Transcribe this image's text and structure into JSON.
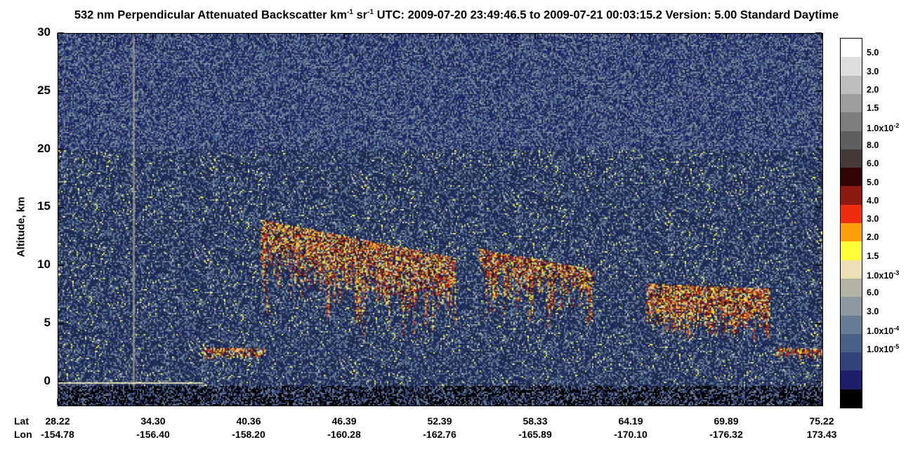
{
  "title": {
    "prefix": "532 nm Perpendicular Attenuated Backscatter km",
    "sup1": "-1",
    "mid": " sr",
    "sup2": "-1",
    "suffix": "  UTC: 2009-07-20 23:49:46.5 to 2009-07-21 00:03:15.2  Version: 5.00 Standard Daytime"
  },
  "chart_data": {
    "type": "heatmap",
    "ylabel": "Altitude, km",
    "ylim": [
      -2,
      30
    ],
    "yticks": [
      0,
      5,
      10,
      15,
      20,
      25,
      30
    ],
    "x_row_labels": [
      "Lat",
      "Lon"
    ],
    "x_ticks": [
      {
        "lat": "28.22",
        "lon": "-154.78"
      },
      {
        "lat": "34.30",
        "lon": "-156.40"
      },
      {
        "lat": "40.36",
        "lon": "-158.20"
      },
      {
        "lat": "46.39",
        "lon": "-160.28"
      },
      {
        "lat": "52.39",
        "lon": "-162.76"
      },
      {
        "lat": "58.33",
        "lon": "-165.89"
      },
      {
        "lat": "64.19",
        "lon": "-170.10"
      },
      {
        "lat": "69.89",
        "lon": "-176.32"
      },
      {
        "lat": "75.22",
        "lon": "173.43"
      }
    ],
    "colorbar": [
      {
        "label": "5.0",
        "exp": "",
        "color": "#ffffff"
      },
      {
        "label": "3.0",
        "exp": "",
        "color": "#dddddd"
      },
      {
        "label": "2.0",
        "exp": "",
        "color": "#bdbdbd"
      },
      {
        "label": "1.5",
        "exp": "",
        "color": "#9e9e9e"
      },
      {
        "label": "1.0x10",
        "exp": "-2",
        "color": "#7e7e7e"
      },
      {
        "label": "8.0",
        "exp": "",
        "color": "#5f5f5f"
      },
      {
        "label": "6.0",
        "exp": "",
        "color": "#453a35"
      },
      {
        "label": "5.0",
        "exp": "",
        "color": "#320404"
      },
      {
        "label": "4.0",
        "exp": "",
        "color": "#8c1a12"
      },
      {
        "label": "3.0",
        "exp": "",
        "color": "#ee2d10"
      },
      {
        "label": "2.0",
        "exp": "",
        "color": "#ff9e0b"
      },
      {
        "label": "1.5",
        "exp": "",
        "color": "#ffff3a"
      },
      {
        "label": "1.0x10",
        "exp": "-3",
        "color": "#ece0b4"
      },
      {
        "label": "6.0",
        "exp": "",
        "color": "#b3b2a3"
      },
      {
        "label": "3.0",
        "exp": "",
        "color": "#8d98a0"
      },
      {
        "label": "1.0x10",
        "exp": "-4",
        "color": "#687c95"
      },
      {
        "label": "1.0x10",
        "exp": "-5",
        "color": "#4a6187"
      },
      {
        "label": "",
        "exp": "",
        "color": "#33447a"
      },
      {
        "label": "",
        "exp": "",
        "color": "#1e1f6c"
      },
      {
        "label": "",
        "exp": "",
        "color": "#000000"
      }
    ],
    "cloud_features": [
      {
        "x0": 0.265,
        "x1": 0.52,
        "ytop": 14,
        "ybot": 8.5,
        "kind": "cirrus"
      },
      {
        "x0": 0.55,
        "x1": 0.7,
        "ytop": 11.5,
        "ybot": 8.5,
        "kind": "cirrus"
      },
      {
        "x0": 0.77,
        "x1": 0.93,
        "ytop": 8.5,
        "ybot": 4.0,
        "kind": "mid"
      },
      {
        "x0": 0.19,
        "x1": 0.27,
        "ytop": 3.0,
        "ybot": 2.0,
        "kind": "low"
      },
      {
        "x0": 0.94,
        "x1": 1.0,
        "ytop": 3.0,
        "ybot": 2.0,
        "kind": "low"
      }
    ]
  }
}
